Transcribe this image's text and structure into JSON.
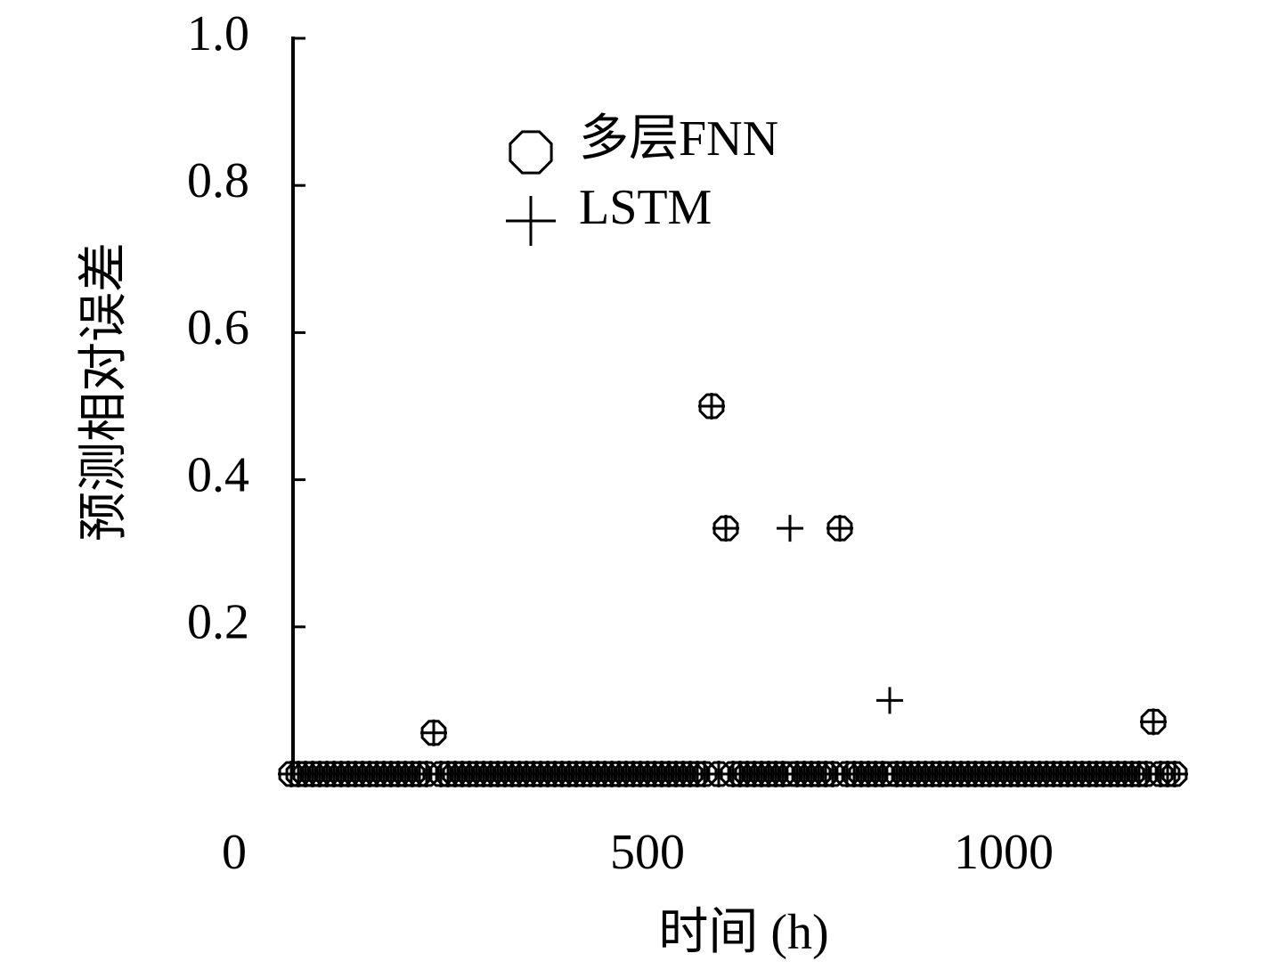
{
  "chart_data": {
    "type": "scatter",
    "xlabel": "时间 (h)",
    "ylabel": "预测相对误差",
    "xlim": [
      0,
      1250
    ],
    "ylim": [
      0,
      1
    ],
    "xticks": [
      0,
      500,
      1000
    ],
    "yticks": [
      {
        "value": 1,
        "label": "1.0"
      },
      0.8,
      0.6,
      0.4,
      0.2
    ],
    "legend": "upper left",
    "x": [
      0,
      10,
      20,
      30,
      40,
      50,
      60,
      70,
      80,
      90,
      100,
      110,
      120,
      130,
      140,
      150,
      160,
      170,
      180,
      190,
      200,
      210,
      220,
      230,
      240,
      250,
      260,
      270,
      280,
      290,
      300,
      310,
      320,
      330,
      340,
      350,
      360,
      370,
      380,
      390,
      400,
      410,
      420,
      430,
      440,
      450,
      460,
      470,
      480,
      490,
      500,
      510,
      520,
      530,
      540,
      550,
      560,
      570,
      580,
      590,
      600,
      610,
      620,
      630,
      640,
      650,
      660,
      670,
      680,
      690,
      700,
      710,
      720,
      730,
      740,
      750,
      760,
      770,
      780,
      790,
      800,
      810,
      820,
      830,
      840,
      850,
      860,
      870,
      880,
      890,
      900,
      910,
      920,
      930,
      940,
      950,
      960,
      970,
      980,
      990,
      1000,
      1010,
      1020,
      1030,
      1040,
      1050,
      1060,
      1070,
      1080,
      1090,
      1100,
      1110,
      1120,
      1130,
      1140,
      1150,
      1160,
      1170,
      1180,
      1190,
      1200,
      1210,
      1220,
      1230,
      1240
    ],
    "series": [
      {
        "name": "多层FNN",
        "marker": "circle",
        "color": "#000000",
        "values": [
          0,
          0,
          0,
          0,
          0,
          0,
          0,
          0,
          0,
          0,
          0,
          0,
          0,
          0,
          0,
          0,
          0,
          0,
          0,
          0,
          0.056,
          0,
          0,
          0,
          0,
          0,
          0,
          0,
          0,
          0,
          0,
          0,
          0,
          0,
          0,
          0,
          0,
          0,
          0,
          0,
          0,
          0,
          0,
          0,
          0,
          0,
          0,
          0,
          0,
          0,
          0,
          0,
          0,
          0,
          0,
          0,
          0,
          0,
          0,
          0.5,
          0,
          0.334,
          0,
          0,
          0,
          0,
          0,
          0,
          0,
          0,
          0,
          0,
          0,
          0,
          0,
          0,
          0,
          0.334,
          0,
          0,
          0,
          0,
          0,
          0,
          0,
          0,
          0,
          0,
          0,
          0,
          0,
          0,
          0,
          0,
          0,
          0,
          0,
          0,
          0,
          0,
          0,
          0,
          0,
          0,
          0,
          0,
          0,
          0,
          0,
          0,
          0,
          0,
          0,
          0,
          0,
          0,
          0,
          0,
          0,
          0,
          0,
          0.071,
          0,
          0,
          0
        ]
      },
      {
        "name": "LSTM",
        "marker": "plus",
        "color": "#000000",
        "values": [
          0,
          0,
          0,
          0,
          0,
          0,
          0,
          0,
          0,
          0,
          0,
          0,
          0,
          0,
          0,
          0,
          0,
          0,
          0,
          0,
          0.056,
          0,
          0,
          0,
          0,
          0,
          0,
          0,
          0,
          0,
          0,
          0,
          0,
          0,
          0,
          0,
          0,
          0,
          0,
          0,
          0,
          0,
          0,
          0,
          0,
          0,
          0,
          0,
          0,
          0,
          0,
          0,
          0,
          0,
          0,
          0,
          0,
          0,
          0,
          0.5,
          0,
          0.334,
          0,
          0,
          0,
          0,
          0,
          0,
          0,
          0,
          0.334,
          0,
          0,
          0,
          0,
          0,
          0,
          0.334,
          0,
          0,
          0,
          0,
          0,
          0,
          0.1,
          0,
          0,
          0,
          0,
          0,
          0,
          0,
          0,
          0,
          0,
          0,
          0,
          0,
          0,
          0,
          0,
          0,
          0,
          0,
          0,
          0,
          0,
          0,
          0,
          0,
          0,
          0,
          0,
          0,
          0,
          0,
          0,
          0,
          0,
          0,
          0,
          0.071,
          0,
          0,
          0
        ]
      }
    ]
  }
}
